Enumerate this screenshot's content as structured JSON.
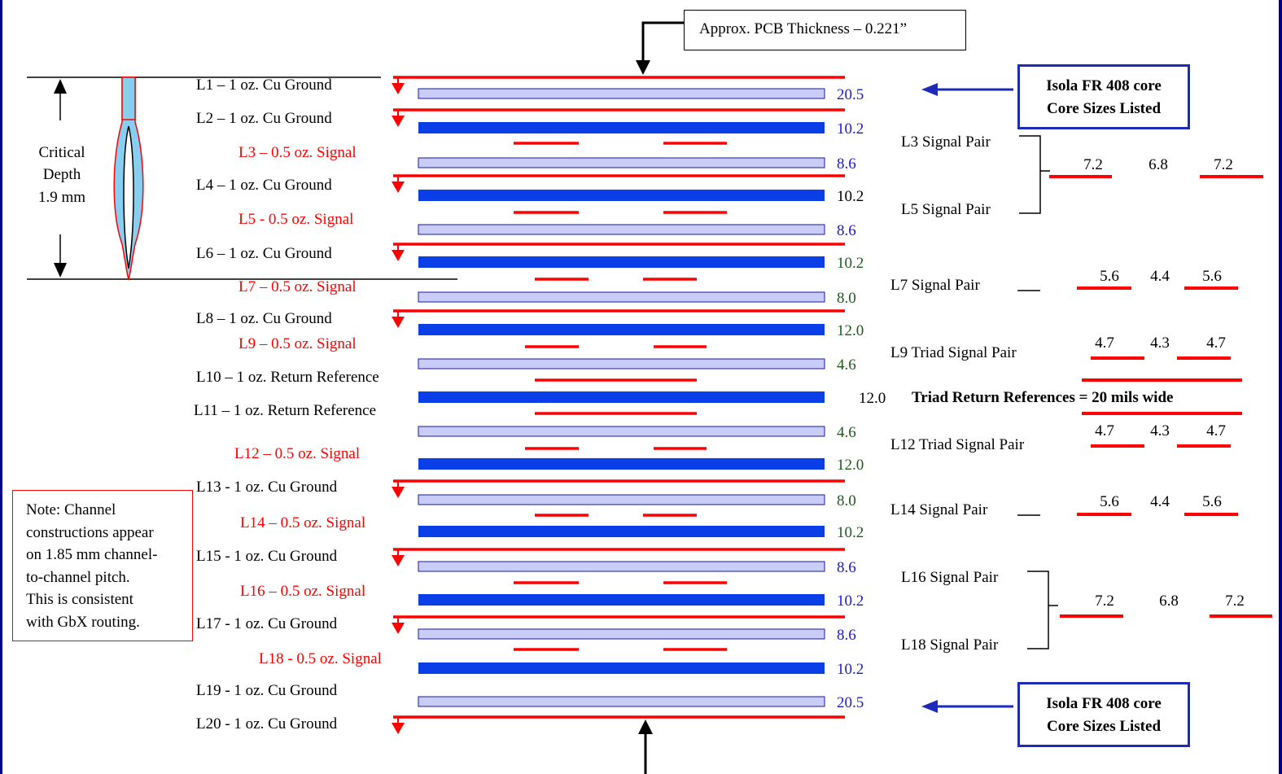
{
  "colors": {
    "frame": "#00008b",
    "plane_red": "#ff0000",
    "signal_red": "#ff0000",
    "core_blue": "#0a3ee6",
    "prepreg_fill": "#c8ccf6",
    "prepreg_border": "#1a1aa0",
    "via_fill": "#87cef0",
    "num_blue": "#1a1acc",
    "num_green": "#1e5a1e",
    "num_black": "#000000",
    "callout_blue": "#1e2ab8"
  },
  "thickness_callout": "Approx. PCB Thickness – 0.221”",
  "core_callouts": [
    [
      "Isola FR 408 core",
      "Core Sizes Listed"
    ],
    [
      "Isola FR 408 core",
      "Core Sizes Listed"
    ]
  ],
  "critical_depth": [
    "Critical",
    "Depth",
    "1.9 mm"
  ],
  "note": [
    "Note: Channel",
    "constructions appear",
    "on 1.85 mm channel-",
    "to-channel pitch.",
    "This is consistent",
    "with GbX routing."
  ],
  "layers": [
    {
      "text": "L1 – 1 oz. Cu Ground",
      "kind": "ground"
    },
    {
      "text": "L2 – 1 oz. Cu Ground",
      "kind": "ground"
    },
    {
      "text": "L3 – 0.5 oz. Signal",
      "kind": "signal"
    },
    {
      "text": "L4 – 1 oz. Cu Ground",
      "kind": "ground"
    },
    {
      "text": "L5 - 0.5 oz. Signal",
      "kind": "signal"
    },
    {
      "text": "L6 – 1 oz. Cu Ground",
      "kind": "ground"
    },
    {
      "text": "L7 – 0.5 oz. Signal",
      "kind": "signal"
    },
    {
      "text": "L8 – 1 oz. Cu Ground",
      "kind": "ground"
    },
    {
      "text": "L9 – 0.5 oz. Signal",
      "kind": "signal"
    },
    {
      "text": "L10 – 1 oz. Return Reference",
      "kind": "reference"
    },
    {
      "text": "L11 – 1 oz. Return Reference",
      "kind": "reference"
    },
    {
      "text": "L12 –  0.5 oz. Signal",
      "kind": "signal"
    },
    {
      "text": "L13 - 1 oz. Cu Ground",
      "kind": "ground"
    },
    {
      "text": "L14 – 0.5 oz. Signal",
      "kind": "signal"
    },
    {
      "text": "L15 - 1 oz. Cu Ground",
      "kind": "ground"
    },
    {
      "text": "L16 – 0.5 oz. Signal",
      "kind": "signal"
    },
    {
      "text": "L17 - 1 oz. Cu Ground",
      "kind": "ground"
    },
    {
      "text": "L18 - 0.5 oz. Signal",
      "kind": "signal"
    },
    {
      "text": "L19 - 1 oz. Cu Ground",
      "kind": "ground"
    },
    {
      "text": "L20 - 1 oz. Cu Ground",
      "kind": "ground"
    }
  ],
  "dielectrics": [
    {
      "type": "prepreg",
      "value": "20.5",
      "color": "blue"
    },
    {
      "type": "core",
      "value": "10.2",
      "color": "blue"
    },
    {
      "type": "prepreg",
      "value": "8.6",
      "color": "blue"
    },
    {
      "type": "core",
      "value": "10.2",
      "color": "black"
    },
    {
      "type": "prepreg",
      "value": "8.6",
      "color": "blue"
    },
    {
      "type": "core",
      "value": "10.2",
      "color": "green"
    },
    {
      "type": "prepreg",
      "value": "8.0",
      "color": "green"
    },
    {
      "type": "core",
      "value": "12.0",
      "color": "green"
    },
    {
      "type": "prepreg",
      "value": "4.6",
      "color": "green"
    },
    {
      "type": "core",
      "value": "12.0",
      "color": "black"
    },
    {
      "type": "prepreg",
      "value": "4.6",
      "color": "green"
    },
    {
      "type": "core",
      "value": "12.0",
      "color": "green"
    },
    {
      "type": "prepreg",
      "value": "8.0",
      "color": "green"
    },
    {
      "type": "core",
      "value": "10.2",
      "color": "green"
    },
    {
      "type": "prepreg",
      "value": "8.6",
      "color": "blue"
    },
    {
      "type": "core",
      "value": "10.2",
      "color": "blue"
    },
    {
      "type": "prepreg",
      "value": "8.6",
      "color": "blue"
    },
    {
      "type": "core",
      "value": "10.2",
      "color": "blue"
    },
    {
      "type": "prepreg",
      "value": "20.5",
      "color": "blue"
    }
  ],
  "triad_note": "Triad Return References = 20 mils wide",
  "signal_pairs": [
    {
      "label": "L3 Signal Pair"
    },
    {
      "label": "L5 Signal Pair"
    },
    {
      "label": "L7 Signal Pair",
      "w1": "5.6",
      "gap": "4.4",
      "w2": "5.6"
    },
    {
      "label": "L9  Triad Signal Pair",
      "w1": "4.7",
      "gap": "4.3",
      "w2": "4.7"
    },
    {
      "label": "L12 Triad Signal Pair",
      "w1": "4.7",
      "gap": "4.3",
      "w2": "4.7"
    },
    {
      "label": "L14 Signal Pair",
      "w1": "5.6",
      "gap": "4.4",
      "w2": "5.6"
    },
    {
      "label": "L16 Signal Pair"
    },
    {
      "label": "L18 Signal Pair"
    }
  ],
  "shared_pair_dims": [
    {
      "w1": "7.2",
      "gap": "6.8",
      "w2": "7.2"
    },
    {
      "w1": "7.2",
      "gap": "6.8",
      "w2": "7.2"
    }
  ]
}
